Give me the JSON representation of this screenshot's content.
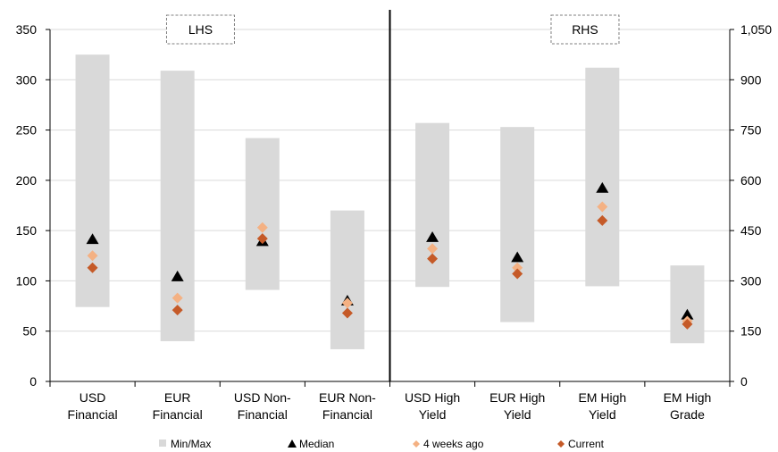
{
  "chart_data": {
    "type": "range-dot",
    "categories": [
      [
        "USD",
        "Financial"
      ],
      [
        "EUR",
        "Financial"
      ],
      [
        "USD Non-",
        "Financial"
      ],
      [
        "EUR Non-",
        "Financial"
      ],
      [
        "USD High",
        "Yield"
      ],
      [
        "EUR High",
        "Yield"
      ],
      [
        "EM High",
        "Yield"
      ],
      [
        "EM High",
        "Grade"
      ]
    ],
    "axis_assignment": [
      "left",
      "left",
      "left",
      "left",
      "right",
      "right",
      "right",
      "right"
    ],
    "left_axis": {
      "ylim": [
        0,
        350
      ],
      "ticks": [
        "0",
        "50",
        "100",
        "150",
        "200",
        "250",
        "300",
        "350"
      ]
    },
    "right_axis": {
      "ylim": [
        0,
        1050
      ],
      "ticks": [
        "0",
        "150",
        "300",
        "450",
        "600",
        "750",
        "900",
        "1,050"
      ]
    },
    "panel_labels": [
      "LHS",
      "RHS"
    ],
    "series": [
      {
        "name": "Min/Max",
        "kind": "range",
        "color": "#d9d9d9",
        "min": [
          74,
          40,
          91,
          32,
          282,
          177,
          284,
          114
        ],
        "max": [
          325,
          309,
          242,
          170,
          771,
          759,
          936,
          346
        ]
      },
      {
        "name": "Median",
        "kind": "triangle",
        "color": "#000000",
        "values": [
          141,
          104,
          139,
          80,
          429,
          369,
          576,
          198
        ]
      },
      {
        "name": "4 weeks ago",
        "kind": "diamond",
        "color": "#f4b183",
        "values": [
          125,
          83,
          153,
          78,
          396,
          339,
          521,
          180
        ]
      },
      {
        "name": "Current",
        "kind": "diamond",
        "color": "#c55a28",
        "values": [
          113,
          71,
          142,
          68,
          366,
          321,
          480,
          171
        ]
      }
    ],
    "legend_position": "bottom"
  }
}
